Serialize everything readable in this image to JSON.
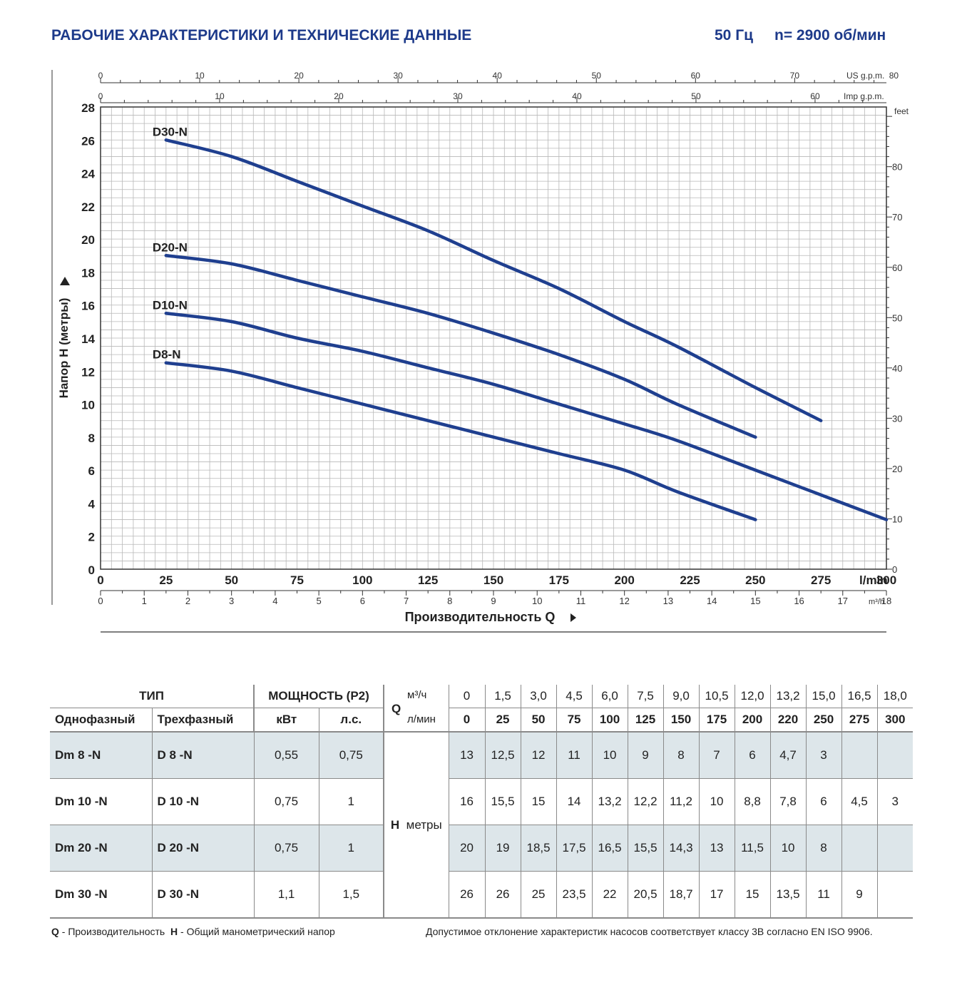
{
  "header": {
    "title": "РАБОЧИЕ ХАРАКТЕРИСТИКИ И ТЕХНИЧЕСКИЕ ДАННЫЕ",
    "frequency": "50 Гц",
    "speed": "n= 2900 об/мин"
  },
  "chart_data": {
    "type": "line",
    "ylabel": "Напор H (метры)",
    "xlabel": "Производительность Q",
    "ylim": [
      0,
      28
    ],
    "xlim": [
      0,
      18
    ],
    "grid": true,
    "y_ticks": [
      "0",
      "2",
      "4",
      "6",
      "8",
      "10",
      "12",
      "14",
      "16",
      "18",
      "20",
      "22",
      "24",
      "26",
      "28"
    ],
    "x_ticks_lmin": [
      "0",
      "25",
      "50",
      "75",
      "100",
      "125",
      "150",
      "175",
      "200",
      "225",
      "250",
      "275",
      "300"
    ],
    "x_unit_lmin": "l/min",
    "x_ticks_m3h": [
      "0",
      "1",
      "2",
      "3",
      "4",
      "5",
      "6",
      "7",
      "8",
      "9",
      "10",
      "11",
      "12",
      "13",
      "14",
      "15",
      "16",
      "17",
      "18"
    ],
    "x_unit_m3h": "m³/h",
    "top_ticks_us": [
      "0",
      "10",
      "20",
      "30",
      "40",
      "50",
      "60",
      "70",
      "80"
    ],
    "top_unit_us": "US g.p.m.",
    "top_ticks_imp": [
      "0",
      "10",
      "20",
      "30",
      "40",
      "50",
      "60"
    ],
    "top_unit_imp": "Imp g.p.m.",
    "right_ticks_feet": [
      "0",
      "10",
      "20",
      "30",
      "40",
      "50",
      "60",
      "70",
      "80"
    ],
    "right_unit": "feet",
    "series": [
      {
        "name": "D30-N",
        "x": [
          1.5,
          3,
          4.5,
          6,
          7.5,
          9,
          10.5,
          12,
          13.2,
          15,
          16.5
        ],
        "y": [
          26,
          25,
          23.5,
          22,
          20.5,
          18.7,
          17,
          15,
          13.5,
          11,
          9
        ]
      },
      {
        "name": "D20-N",
        "x": [
          1.5,
          3,
          4.5,
          6,
          7.5,
          9,
          10.5,
          12,
          13.2,
          15
        ],
        "y": [
          19,
          18.5,
          17.5,
          16.5,
          15.5,
          14.3,
          13,
          11.5,
          10,
          8
        ]
      },
      {
        "name": "D10-N",
        "x": [
          1.5,
          3,
          4.5,
          6,
          7.5,
          9,
          10.5,
          12,
          13.2,
          15,
          16.5,
          18
        ],
        "y": [
          15.5,
          15,
          14,
          13.2,
          12.2,
          11.2,
          10,
          8.8,
          7.8,
          6,
          4.5,
          3
        ]
      },
      {
        "name": "D8-N",
        "x": [
          1.5,
          3,
          4.5,
          6,
          7.5,
          9,
          10.5,
          12,
          13.2,
          15
        ],
        "y": [
          12.5,
          12,
          11,
          10,
          9,
          8,
          7,
          6,
          4.7,
          3
        ]
      }
    ]
  },
  "table": {
    "type_header": "ТИП",
    "single_phase": "Однофазный",
    "three_phase": "Трехфазный",
    "power_header": "МОЩНОСТЬ (P2)",
    "kw": "кВт",
    "hp": "л.с.",
    "q_label": "Q",
    "m3h_unit": "м³/ч",
    "lmin_unit": "л/мин",
    "h_label": "H",
    "h_unit": "метры",
    "q_m3h": [
      "0",
      "1,5",
      "3,0",
      "4,5",
      "6,0",
      "7,5",
      "9,0",
      "10,5",
      "12,0",
      "13,2",
      "15,0",
      "16,5",
      "18,0"
    ],
    "q_lmin": [
      "0",
      "25",
      "50",
      "75",
      "100",
      "125",
      "150",
      "175",
      "200",
      "220",
      "250",
      "275",
      "300"
    ],
    "rows": [
      {
        "single": "Dm 8   -N",
        "three": "D 8   -N",
        "kw": "0,55",
        "hp": "0,75",
        "h": [
          "13",
          "12,5",
          "12",
          "11",
          "10",
          "9",
          "8",
          "7",
          "6",
          "4,7",
          "3",
          "",
          ""
        ]
      },
      {
        "single": "Dm 10 -N",
        "three": "D 10 -N",
        "kw": "0,75",
        "hp": "1",
        "h": [
          "16",
          "15,5",
          "15",
          "14",
          "13,2",
          "12,2",
          "11,2",
          "10",
          "8,8",
          "7,8",
          "6",
          "4,5",
          "3"
        ]
      },
      {
        "single": "Dm 20 -N",
        "three": "D 20 -N",
        "kw": "0,75",
        "hp": "1",
        "h": [
          "20",
          "19",
          "18,5",
          "17,5",
          "16,5",
          "15,5",
          "14,3",
          "13",
          "11,5",
          "10",
          "8",
          "",
          ""
        ]
      },
      {
        "single": "Dm 30 -N",
        "three": "D 30 -N",
        "kw": "1,1",
        "hp": "1,5",
        "h": [
          "26",
          "26",
          "25",
          "23,5",
          "22",
          "20,5",
          "18,7",
          "17",
          "15",
          "13,5",
          "11",
          "9",
          ""
        ]
      }
    ]
  },
  "footer": {
    "q_abbr": "Q",
    "q_text": " - Производительность",
    "h_abbr": "H",
    "h_text": " - Общий манометрический напор",
    "note": "Допустимое отклонение характеристик насосов соответствует классу 3В согласно EN ISO 9906."
  },
  "colors": {
    "title": "#1d3a8a",
    "curve": "#1f3f8f",
    "grid": "#b8b8b8",
    "row_shade": "#dde6ea"
  }
}
